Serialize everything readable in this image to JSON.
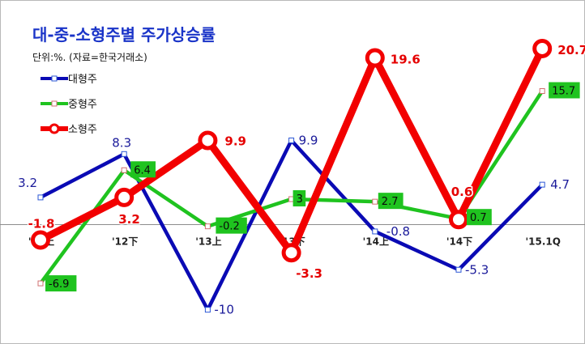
{
  "chart_data": {
    "type": "line",
    "title": "대-중-소형주별 주가상승률",
    "subtitle": "단위:%. (자료=한국거래소)",
    "categories": [
      "'12上",
      "'12下",
      "'13上",
      "'13下",
      "'14上",
      "'14下",
      "'15.1Q"
    ],
    "series": [
      {
        "name": "대형주",
        "values": [
          3.2,
          8.3,
          -10,
          9.9,
          -0.8,
          -5.3,
          4.7
        ],
        "labels": [
          "3.2",
          "8.3",
          "-10",
          "9.9",
          "-0.8",
          "-5.3",
          "4.7"
        ],
        "color": "#0a0ab4"
      },
      {
        "name": "중형주",
        "values": [
          -6.9,
          6.4,
          -0.2,
          3,
          2.7,
          0.7,
          15.7
        ],
        "labels": [
          "-6.9",
          "6.4",
          "-0.2",
          "3",
          "2.7",
          "0.7",
          "15.7"
        ],
        "color": "#1fc31f"
      },
      {
        "name": "소형주",
        "values": [
          -1.8,
          3.2,
          9.9,
          -3.3,
          19.6,
          0.6,
          20.7
        ],
        "labels": [
          "-1.8",
          "3.2",
          "9.9",
          "-3.3",
          "19.6",
          "0.6",
          "20.7"
        ],
        "color": "#f20000"
      }
    ],
    "ylim": [
      -12.6,
      24.5
    ],
    "grid": false,
    "legend": "top-left",
    "zero_line": true
  }
}
